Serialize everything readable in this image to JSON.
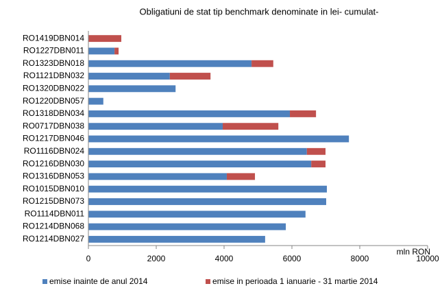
{
  "chart_data": {
    "type": "stacked-barh",
    "title": "Obligatiuni de stat tip benchmark denominate in lei- cumulat-",
    "x_label": "mln RON",
    "categories": [
      "RO1419DBN014",
      "RO1227DBN011",
      "RO1323DBN018",
      "RO1121DBN032",
      "RO1320DBN022",
      "RO1220DBN057",
      "RO1318DBN034",
      "RO0717DBN038",
      "RO1217DBN046",
      "RO1116DBN024",
      "RO1216DBN030",
      "RO1316DBN053",
      "RO1015DBN010",
      "RO1215DBN073",
      "RO1114DBN011",
      "RO1214DBN068",
      "RO1214DBN027"
    ],
    "series": [
      {
        "name": "emise inainte de anul 2014",
        "color": "#4f81bd",
        "values": [
          0,
          770,
          4810,
          2400,
          2570,
          440,
          5940,
          3960,
          7680,
          6440,
          6570,
          4080,
          7030,
          7010,
          6400,
          5820,
          5210
        ]
      },
      {
        "name": "emise in perioada 1 ianuarie - 31 martie 2014",
        "color": "#c0504d",
        "values": [
          970,
          120,
          640,
          1200,
          0,
          0,
          770,
          1640,
          0,
          550,
          420,
          830,
          0,
          0,
          0,
          0,
          0
        ]
      }
    ],
    "xlim": [
      0,
      10000
    ],
    "xticks": [
      0,
      2000,
      4000,
      6000,
      8000,
      10000
    ],
    "legend": "bottom"
  }
}
